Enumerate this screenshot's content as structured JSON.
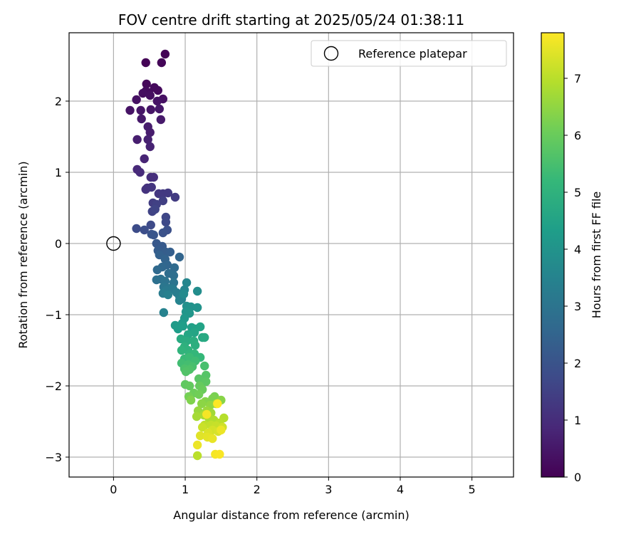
{
  "chart_data": {
    "type": "scatter",
    "title": "FOV centre drift starting at 2025/05/24 01:38:11",
    "xlabel": "Angular distance from reference (arcmin)",
    "ylabel": "Rotation from reference (arcmin)",
    "colorbar_label": "Hours from first FF file",
    "xlim": [
      -0.62,
      5.58
    ],
    "ylim": [
      -3.28,
      2.96
    ],
    "x_ticks": [
      0,
      1,
      2,
      3,
      4,
      5
    ],
    "y_ticks": [
      -3,
      -2,
      -1,
      0,
      1,
      2
    ],
    "colorbar_range": [
      0,
      7.8
    ],
    "colorbar_ticks": [
      0,
      1,
      2,
      3,
      4,
      5,
      6,
      7
    ],
    "colormap": "viridis",
    "grid": true,
    "legend": {
      "placement": "top-right",
      "entries": [
        "Reference platepar"
      ]
    },
    "reference_point": {
      "x": 0,
      "y": 0
    },
    "points": [
      {
        "x": 0.72,
        "y": 2.66,
        "c": 0.05
      },
      {
        "x": 0.45,
        "y": 2.54,
        "c": 0.05
      },
      {
        "x": 0.67,
        "y": 2.54,
        "c": 0.1
      },
      {
        "x": 0.46,
        "y": 2.24,
        "c": 0.15
      },
      {
        "x": 0.57,
        "y": 2.19,
        "c": 0.2
      },
      {
        "x": 0.62,
        "y": 2.15,
        "c": 0.2
      },
      {
        "x": 0.45,
        "y": 2.14,
        "c": 0.25
      },
      {
        "x": 0.49,
        "y": 2.12,
        "c": 0.25
      },
      {
        "x": 0.41,
        "y": 2.11,
        "c": 0.3
      },
      {
        "x": 0.51,
        "y": 2.08,
        "c": 0.3
      },
      {
        "x": 0.32,
        "y": 2.02,
        "c": 0.35
      },
      {
        "x": 0.69,
        "y": 2.03,
        "c": 0.35
      },
      {
        "x": 0.61,
        "y": 2.0,
        "c": 0.4
      },
      {
        "x": 0.23,
        "y": 1.87,
        "c": 0.4
      },
      {
        "x": 0.38,
        "y": 1.87,
        "c": 0.45
      },
      {
        "x": 0.52,
        "y": 1.88,
        "c": 0.45
      },
      {
        "x": 0.64,
        "y": 1.89,
        "c": 0.5
      },
      {
        "x": 0.39,
        "y": 1.75,
        "c": 0.5
      },
      {
        "x": 0.66,
        "y": 1.74,
        "c": 0.55
      },
      {
        "x": 0.48,
        "y": 1.64,
        "c": 0.6
      },
      {
        "x": 0.51,
        "y": 1.56,
        "c": 0.6
      },
      {
        "x": 0.33,
        "y": 1.46,
        "c": 0.65
      },
      {
        "x": 0.48,
        "y": 1.46,
        "c": 0.7
      },
      {
        "x": 0.51,
        "y": 1.36,
        "c": 0.75
      },
      {
        "x": 0.43,
        "y": 1.19,
        "c": 0.8
      },
      {
        "x": 0.33,
        "y": 1.04,
        "c": 0.9
      },
      {
        "x": 0.37,
        "y": 1.0,
        "c": 0.95
      },
      {
        "x": 0.52,
        "y": 0.93,
        "c": 1.0
      },
      {
        "x": 0.56,
        "y": 0.93,
        "c": 1.05
      },
      {
        "x": 0.47,
        "y": 0.78,
        "c": 1.1
      },
      {
        "x": 0.45,
        "y": 0.76,
        "c": 1.15
      },
      {
        "x": 0.53,
        "y": 0.79,
        "c": 1.2
      },
      {
        "x": 0.63,
        "y": 0.7,
        "c": 1.25
      },
      {
        "x": 0.69,
        "y": 0.7,
        "c": 1.3
      },
      {
        "x": 0.76,
        "y": 0.71,
        "c": 1.3
      },
      {
        "x": 0.86,
        "y": 0.65,
        "c": 1.35
      },
      {
        "x": 0.55,
        "y": 0.57,
        "c": 1.4
      },
      {
        "x": 0.69,
        "y": 0.6,
        "c": 1.45
      },
      {
        "x": 0.6,
        "y": 0.55,
        "c": 1.5
      },
      {
        "x": 0.54,
        "y": 0.45,
        "c": 1.55
      },
      {
        "x": 0.58,
        "y": 0.48,
        "c": 1.6
      },
      {
        "x": 0.73,
        "y": 0.37,
        "c": 1.65
      },
      {
        "x": 0.73,
        "y": 0.3,
        "c": 1.7
      },
      {
        "x": 0.52,
        "y": 0.26,
        "c": 1.75
      },
      {
        "x": 0.32,
        "y": 0.21,
        "c": 1.8
      },
      {
        "x": 0.43,
        "y": 0.19,
        "c": 1.85
      },
      {
        "x": 0.75,
        "y": 0.19,
        "c": 1.9
      },
      {
        "x": 0.69,
        "y": 0.15,
        "c": 1.95
      },
      {
        "x": 0.53,
        "y": 0.13,
        "c": 2.0
      },
      {
        "x": 0.56,
        "y": 0.12,
        "c": 2.05
      },
      {
        "x": 0.6,
        "y": 0.0,
        "c": 2.15
      },
      {
        "x": 0.68,
        "y": -0.04,
        "c": 2.2
      },
      {
        "x": 0.62,
        "y": -0.1,
        "c": 2.25
      },
      {
        "x": 0.73,
        "y": -0.12,
        "c": 2.3
      },
      {
        "x": 0.79,
        "y": -0.12,
        "c": 2.35
      },
      {
        "x": 0.64,
        "y": -0.16,
        "c": 2.4
      },
      {
        "x": 0.72,
        "y": -0.22,
        "c": 2.45
      },
      {
        "x": 0.92,
        "y": -0.19,
        "c": 2.5
      },
      {
        "x": 0.75,
        "y": -0.3,
        "c": 2.55
      },
      {
        "x": 0.68,
        "y": -0.33,
        "c": 2.6
      },
      {
        "x": 0.61,
        "y": -0.37,
        "c": 2.65
      },
      {
        "x": 0.85,
        "y": -0.34,
        "c": 2.7
      },
      {
        "x": 0.77,
        "y": -0.42,
        "c": 2.75
      },
      {
        "x": 0.84,
        "y": -0.45,
        "c": 2.8
      },
      {
        "x": 0.6,
        "y": -0.51,
        "c": 2.85
      },
      {
        "x": 0.66,
        "y": -0.5,
        "c": 2.9
      },
      {
        "x": 0.72,
        "y": -0.53,
        "c": 2.95
      },
      {
        "x": 0.84,
        "y": -0.55,
        "c": 3.0
      },
      {
        "x": 0.7,
        "y": -0.61,
        "c": 3.05
      },
      {
        "x": 0.78,
        "y": -0.63,
        "c": 3.1
      },
      {
        "x": 0.73,
        "y": -0.66,
        "c": 3.15
      },
      {
        "x": 0.83,
        "y": -0.64,
        "c": 3.2
      },
      {
        "x": 0.69,
        "y": -0.7,
        "c": 3.25
      },
      {
        "x": 0.88,
        "y": -0.69,
        "c": 3.3
      },
      {
        "x": 0.92,
        "y": -0.74,
        "c": 3.35
      },
      {
        "x": 0.76,
        "y": -0.72,
        "c": 3.4
      },
      {
        "x": 0.95,
        "y": -0.78,
        "c": 3.45
      },
      {
        "x": 0.7,
        "y": -0.97,
        "c": 3.45
      },
      {
        "x": 0.92,
        "y": -0.8,
        "c": 3.5
      },
      {
        "x": 0.99,
        "y": -0.65,
        "c": 3.55
      },
      {
        "x": 1.02,
        "y": -0.55,
        "c": 3.6
      },
      {
        "x": 0.98,
        "y": -0.71,
        "c": 3.7
      },
      {
        "x": 1.17,
        "y": -0.67,
        "c": 3.8
      },
      {
        "x": 1.02,
        "y": -0.88,
        "c": 3.9
      },
      {
        "x": 1.08,
        "y": -0.89,
        "c": 3.95
      },
      {
        "x": 1.17,
        "y": -0.9,
        "c": 4.0
      },
      {
        "x": 1.01,
        "y": -0.96,
        "c": 4.05
      },
      {
        "x": 1.06,
        "y": -0.98,
        "c": 4.1
      },
      {
        "x": 0.99,
        "y": -1.05,
        "c": 4.15
      },
      {
        "x": 0.96,
        "y": -1.12,
        "c": 4.2
      },
      {
        "x": 0.86,
        "y": -1.15,
        "c": 4.25
      },
      {
        "x": 0.9,
        "y": -1.2,
        "c": 4.3
      },
      {
        "x": 0.97,
        "y": -1.16,
        "c": 4.35
      },
      {
        "x": 1.09,
        "y": -1.18,
        "c": 4.4
      },
      {
        "x": 1.14,
        "y": -1.2,
        "c": 4.45
      },
      {
        "x": 1.21,
        "y": -1.17,
        "c": 4.5
      },
      {
        "x": 1.13,
        "y": -1.25,
        "c": 4.55
      },
      {
        "x": 1.04,
        "y": -1.28,
        "c": 4.6
      },
      {
        "x": 1.24,
        "y": -1.32,
        "c": 4.65
      },
      {
        "x": 1.27,
        "y": -1.32,
        "c": 4.7
      },
      {
        "x": 0.94,
        "y": -1.34,
        "c": 4.75
      },
      {
        "x": 1.02,
        "y": -1.37,
        "c": 4.8
      },
      {
        "x": 1.12,
        "y": -1.37,
        "c": 4.85
      },
      {
        "x": 1.14,
        "y": -1.43,
        "c": 4.9
      },
      {
        "x": 0.99,
        "y": -1.45,
        "c": 4.95
      },
      {
        "x": 1.04,
        "y": -1.5,
        "c": 5.0
      },
      {
        "x": 0.95,
        "y": -1.5,
        "c": 5.05
      },
      {
        "x": 1.06,
        "y": -1.55,
        "c": 5.1
      },
      {
        "x": 1.13,
        "y": -1.55,
        "c": 5.15
      },
      {
        "x": 1.21,
        "y": -1.6,
        "c": 5.2
      },
      {
        "x": 0.99,
        "y": -1.62,
        "c": 5.25
      },
      {
        "x": 1.06,
        "y": -1.6,
        "c": 5.3
      },
      {
        "x": 1.14,
        "y": -1.65,
        "c": 5.35
      },
      {
        "x": 0.95,
        "y": -1.68,
        "c": 5.4
      },
      {
        "x": 1.04,
        "y": -1.7,
        "c": 5.45
      },
      {
        "x": 1.1,
        "y": -1.73,
        "c": 5.5
      },
      {
        "x": 1.27,
        "y": -1.72,
        "c": 5.5
      },
      {
        "x": 0.99,
        "y": -1.76,
        "c": 5.55
      },
      {
        "x": 1.06,
        "y": -1.77,
        "c": 5.6
      },
      {
        "x": 1.01,
        "y": -1.8,
        "c": 5.65
      },
      {
        "x": 1.29,
        "y": -1.85,
        "c": 5.7
      },
      {
        "x": 1.19,
        "y": -1.9,
        "c": 5.75
      },
      {
        "x": 1.29,
        "y": -1.94,
        "c": 5.8
      },
      {
        "x": 1.0,
        "y": -1.98,
        "c": 5.85
      },
      {
        "x": 1.06,
        "y": -2.0,
        "c": 5.9
      },
      {
        "x": 1.2,
        "y": -2.0,
        "c": 5.95
      },
      {
        "x": 1.24,
        "y": -2.05,
        "c": 6.0
      },
      {
        "x": 1.12,
        "y": -2.1,
        "c": 6.05
      },
      {
        "x": 1.19,
        "y": -2.12,
        "c": 6.1
      },
      {
        "x": 1.05,
        "y": -2.15,
        "c": 6.15
      },
      {
        "x": 1.41,
        "y": -2.15,
        "c": 6.2
      },
      {
        "x": 1.38,
        "y": -2.18,
        "c": 6.25
      },
      {
        "x": 1.08,
        "y": -2.2,
        "c": 6.3
      },
      {
        "x": 1.28,
        "y": -2.22,
        "c": 6.35
      },
      {
        "x": 1.5,
        "y": -2.2,
        "c": 6.4
      },
      {
        "x": 1.23,
        "y": -2.25,
        "c": 6.45
      },
      {
        "x": 1.35,
        "y": -2.27,
        "c": 6.5
      },
      {
        "x": 1.43,
        "y": -2.25,
        "c": 6.55
      },
      {
        "x": 1.18,
        "y": -2.35,
        "c": 6.6
      },
      {
        "x": 1.3,
        "y": -2.35,
        "c": 6.65
      },
      {
        "x": 1.36,
        "y": -2.38,
        "c": 6.7
      },
      {
        "x": 1.16,
        "y": -2.43,
        "c": 6.75
      },
      {
        "x": 1.26,
        "y": -2.41,
        "c": 6.8
      },
      {
        "x": 1.33,
        "y": -2.45,
        "c": 6.85
      },
      {
        "x": 1.4,
        "y": -2.48,
        "c": 6.9
      },
      {
        "x": 1.54,
        "y": -2.45,
        "c": 6.95
      },
      {
        "x": 1.48,
        "y": -2.52,
        "c": 7.0
      },
      {
        "x": 1.27,
        "y": -2.55,
        "c": 7.05
      },
      {
        "x": 1.36,
        "y": -2.55,
        "c": 7.1
      },
      {
        "x": 1.43,
        "y": -2.56,
        "c": 7.15
      },
      {
        "x": 1.24,
        "y": -2.58,
        "c": 7.2
      },
      {
        "x": 1.52,
        "y": -2.58,
        "c": 7.25
      },
      {
        "x": 1.38,
        "y": -2.62,
        "c": 7.3
      },
      {
        "x": 1.46,
        "y": -2.64,
        "c": 7.35
      },
      {
        "x": 1.32,
        "y": -2.66,
        "c": 7.4
      },
      {
        "x": 1.21,
        "y": -2.7,
        "c": 7.45
      },
      {
        "x": 1.31,
        "y": -2.72,
        "c": 7.5
      },
      {
        "x": 1.38,
        "y": -2.74,
        "c": 7.55
      },
      {
        "x": 1.17,
        "y": -2.83,
        "c": 7.6
      },
      {
        "x": 1.17,
        "y": -2.98,
        "c": 7.0
      },
      {
        "x": 1.42,
        "y": -2.96,
        "c": 7.7
      },
      {
        "x": 1.48,
        "y": -2.96,
        "c": 7.75
      },
      {
        "x": 1.45,
        "y": -2.25,
        "c": 7.8
      },
      {
        "x": 1.3,
        "y": -2.4,
        "c": 7.7
      },
      {
        "x": 1.5,
        "y": -2.62,
        "c": 7.6
      }
    ]
  }
}
